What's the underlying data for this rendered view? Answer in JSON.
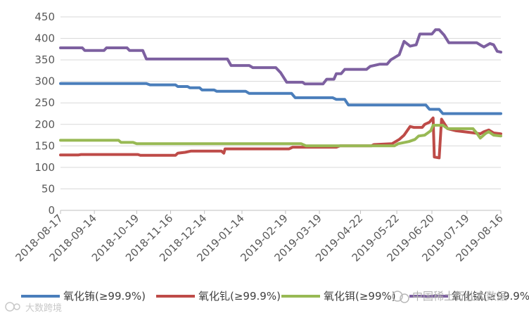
{
  "chart_data": {
    "type": "line",
    "title": "",
    "xlabel": "",
    "ylabel": "",
    "ylim": [
      0,
      450
    ],
    "yticks": [
      0,
      50,
      100,
      150,
      200,
      250,
      300,
      350,
      400,
      450
    ],
    "xlim": [
      "2018-08-17",
      "2019-08-16"
    ],
    "xticks": [
      "2018-08-17",
      "2018-09-14",
      "2018-10-19",
      "2018-11-16",
      "2018-12-14",
      "2019-01-14",
      "2019-02-19",
      "2019-03-19",
      "2019-04-22",
      "2019-05-22",
      "2019-06-20",
      "2019-07-19",
      "2019-08-16"
    ],
    "grid": "horizontal",
    "legend_position": "bottom",
    "series": [
      {
        "name": "氧化铕(≥99.9%)",
        "color": "#4a7ebb",
        "points": [
          [
            "2018-08-17",
            295
          ],
          [
            "2018-10-27",
            295
          ],
          [
            "2018-10-30",
            292
          ],
          [
            "2018-11-20",
            292
          ],
          [
            "2018-11-22",
            288
          ],
          [
            "2018-11-30",
            288
          ],
          [
            "2018-12-02",
            285
          ],
          [
            "2018-12-10",
            285
          ],
          [
            "2018-12-12",
            280
          ],
          [
            "2018-12-22",
            280
          ],
          [
            "2018-12-24",
            277
          ],
          [
            "2019-01-17",
            277
          ],
          [
            "2019-01-20",
            272
          ],
          [
            "2019-02-24",
            272
          ],
          [
            "2019-02-27",
            262
          ],
          [
            "2019-03-30",
            262
          ],
          [
            "2019-04-02",
            258
          ],
          [
            "2019-04-09",
            258
          ],
          [
            "2019-04-12",
            245
          ],
          [
            "2019-06-15",
            245
          ],
          [
            "2019-06-18",
            235
          ],
          [
            "2019-06-26",
            235
          ],
          [
            "2019-06-29",
            225
          ],
          [
            "2019-08-16",
            225
          ]
        ]
      },
      {
        "name": "氧化钆(≥99.9%)",
        "color": "#be4b48",
        "points": [
          [
            "2018-08-17",
            129
          ],
          [
            "2018-09-01",
            129
          ],
          [
            "2018-09-03",
            130
          ],
          [
            "2018-10-20",
            130
          ],
          [
            "2018-10-22",
            128
          ],
          [
            "2018-11-20",
            128
          ],
          [
            "2018-11-22",
            133
          ],
          [
            "2018-11-28",
            135
          ],
          [
            "2018-12-03",
            138
          ],
          [
            "2018-12-28",
            138
          ],
          [
            "2018-12-30",
            133
          ],
          [
            "2018-12-31",
            143
          ],
          [
            "2019-02-22",
            143
          ],
          [
            "2019-02-25",
            147
          ],
          [
            "2019-04-02",
            147
          ],
          [
            "2019-04-05",
            150
          ],
          [
            "2019-05-01",
            150
          ],
          [
            "2019-05-03",
            153
          ],
          [
            "2019-05-18",
            155
          ],
          [
            "2019-05-24",
            165
          ],
          [
            "2019-05-28",
            175
          ],
          [
            "2019-06-02",
            195
          ],
          [
            "2019-06-05",
            193
          ],
          [
            "2019-06-12",
            193
          ],
          [
            "2019-06-14",
            200
          ],
          [
            "2019-06-18",
            205
          ],
          [
            "2019-06-21",
            215
          ],
          [
            "2019-06-22",
            124
          ],
          [
            "2019-06-26",
            122
          ],
          [
            "2019-06-28",
            212
          ],
          [
            "2019-07-03",
            190
          ],
          [
            "2019-07-10",
            185
          ],
          [
            "2019-07-25",
            180
          ],
          [
            "2019-07-30",
            178
          ],
          [
            "2019-08-02",
            183
          ],
          [
            "2019-08-06",
            187
          ],
          [
            "2019-08-10",
            180
          ],
          [
            "2019-08-16",
            178
          ]
        ]
      },
      {
        "name": "氧化铒(≥99%)",
        "color": "#98b954",
        "points": [
          [
            "2018-08-17",
            163
          ],
          [
            "2018-10-04",
            163
          ],
          [
            "2018-10-06",
            158
          ],
          [
            "2018-10-16",
            158
          ],
          [
            "2018-10-19",
            155
          ],
          [
            "2019-03-04",
            155
          ],
          [
            "2019-03-08",
            150
          ],
          [
            "2019-05-20",
            150
          ],
          [
            "2019-05-23",
            155
          ],
          [
            "2019-06-01",
            160
          ],
          [
            "2019-06-06",
            165
          ],
          [
            "2019-06-09",
            173
          ],
          [
            "2019-06-14",
            175
          ],
          [
            "2019-06-19",
            185
          ],
          [
            "2019-06-21",
            198
          ],
          [
            "2019-06-29",
            198
          ],
          [
            "2019-07-03",
            190
          ],
          [
            "2019-07-24",
            190
          ],
          [
            "2019-07-27",
            180
          ],
          [
            "2019-07-30",
            168
          ],
          [
            "2019-08-03",
            178
          ],
          [
            "2019-08-06",
            183
          ],
          [
            "2019-08-10",
            175
          ],
          [
            "2019-08-16",
            173
          ]
        ]
      },
      {
        "name": "氧化铽(≥99.9%)",
        "color": "#7d60a0",
        "points": [
          [
            "2018-08-17",
            378
          ],
          [
            "2018-09-04",
            378
          ],
          [
            "2018-09-06",
            372
          ],
          [
            "2018-09-22",
            372
          ],
          [
            "2018-09-24",
            378
          ],
          [
            "2018-10-11",
            378
          ],
          [
            "2018-10-13",
            372
          ],
          [
            "2018-10-24",
            372
          ],
          [
            "2018-10-27",
            352
          ],
          [
            "2019-01-02",
            352
          ],
          [
            "2019-01-05",
            337
          ],
          [
            "2019-01-20",
            337
          ],
          [
            "2019-01-23",
            332
          ],
          [
            "2019-02-11",
            332
          ],
          [
            "2019-02-15",
            320
          ],
          [
            "2019-02-20",
            298
          ],
          [
            "2019-03-05",
            298
          ],
          [
            "2019-03-07",
            294
          ],
          [
            "2019-03-22",
            294
          ],
          [
            "2019-03-25",
            305
          ],
          [
            "2019-03-31",
            305
          ],
          [
            "2019-04-02",
            318
          ],
          [
            "2019-04-06",
            318
          ],
          [
            "2019-04-09",
            328
          ],
          [
            "2019-04-27",
            328
          ],
          [
            "2019-04-30",
            335
          ],
          [
            "2019-05-08",
            340
          ],
          [
            "2019-05-14",
            340
          ],
          [
            "2019-05-17",
            350
          ],
          [
            "2019-05-24",
            362
          ],
          [
            "2019-05-28",
            393
          ],
          [
            "2019-06-02",
            382
          ],
          [
            "2019-06-07",
            385
          ],
          [
            "2019-06-10",
            410
          ],
          [
            "2019-06-20",
            410
          ],
          [
            "2019-06-23",
            420
          ],
          [
            "2019-06-26",
            420
          ],
          [
            "2019-06-30",
            408
          ],
          [
            "2019-07-04",
            390
          ],
          [
            "2019-07-27",
            390
          ],
          [
            "2019-07-31",
            383
          ],
          [
            "2019-08-02",
            380
          ],
          [
            "2019-08-07",
            388
          ],
          [
            "2019-08-10",
            385
          ],
          [
            "2019-08-13",
            370
          ],
          [
            "2019-08-16",
            368
          ]
        ]
      }
    ]
  },
  "watermarks": [
    "中国稀土行业大数据",
    "大数跨境"
  ]
}
